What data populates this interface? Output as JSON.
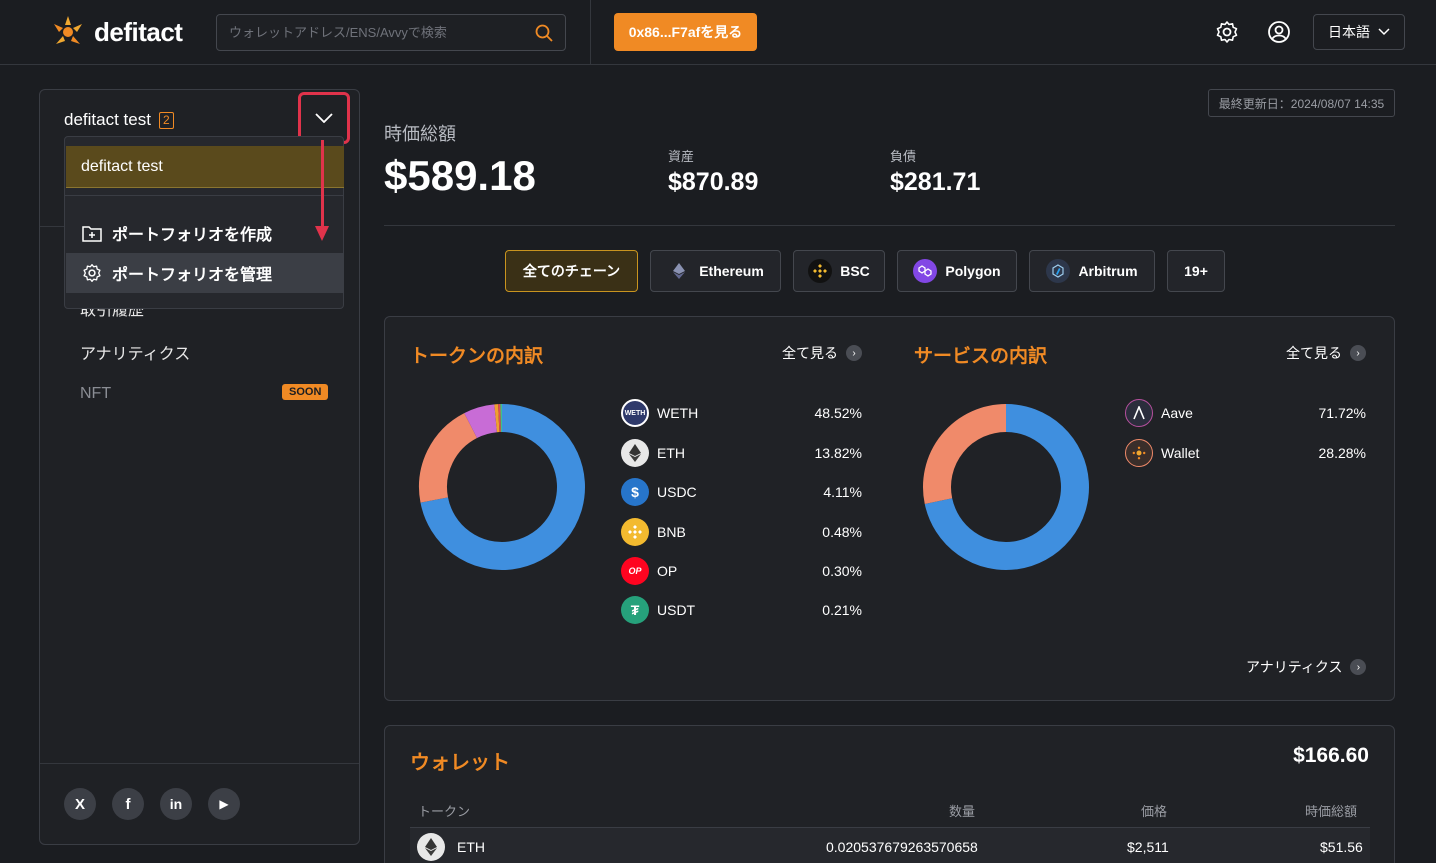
{
  "header": {
    "logo_text": "defitact",
    "search_placeholder": "ウォレットアドレス/ENS/Avvyで検索",
    "address_button": "0x86...F7afを見る",
    "language": "日本語"
  },
  "sidebar": {
    "portfolio_name": "defitact test",
    "portfolio_count": "2",
    "nav": [
      {
        "label": "取引履歴"
      },
      {
        "label": "アナリティクス"
      },
      {
        "label": "NFT",
        "badge": "SOON"
      }
    ],
    "social": [
      "X",
      "f",
      "in",
      "▶"
    ]
  },
  "dropdown": {
    "selected": "defitact test",
    "create": "ポートフォリオを作成",
    "manage": "ポートフォリオを管理"
  },
  "summary": {
    "updated": "最終更新日：2024/08/07 14:35",
    "total_label": "時価総額",
    "total_value": "$589.18",
    "assets_label": "資産",
    "assets_value": "$870.89",
    "liabilities_label": "負債",
    "liabilities_value": "$281.71"
  },
  "chains": [
    {
      "label": "全てのチェーン",
      "active": true
    },
    {
      "label": "Ethereum"
    },
    {
      "label": "BSC"
    },
    {
      "label": "Polygon"
    },
    {
      "label": "Arbitrum"
    },
    {
      "label": "19+"
    }
  ],
  "token_breakdown": {
    "title": "トークンの内訳",
    "see_all": "全て見る",
    "items": [
      {
        "name": "WETH",
        "pct": "48.52%",
        "color": "#2f3a6b"
      },
      {
        "name": "ETH",
        "pct": "13.82%",
        "color": "#3a3d44"
      },
      {
        "name": "USDC",
        "pct": "4.11%",
        "color": "#2775ca"
      },
      {
        "name": "BNB",
        "pct": "0.48%",
        "color": "#f3ba2f"
      },
      {
        "name": "OP",
        "pct": "0.30%",
        "color": "#ff0420"
      },
      {
        "name": "USDT",
        "pct": "0.21%",
        "color": "#26a17b"
      }
    ],
    "donut": [
      {
        "value": 66.7,
        "color": "#3f8fdf"
      },
      {
        "value": 19.0,
        "color": "#f08a6a"
      },
      {
        "value": 5.6,
        "color": "#c86cd6"
      },
      {
        "value": 0.66,
        "color": "#f0a030"
      },
      {
        "value": 0.41,
        "color": "#e05050"
      },
      {
        "value": 0.29,
        "color": "#3fc08a"
      }
    ]
  },
  "service_breakdown": {
    "title": "サービスの内訳",
    "see_all": "全て見る",
    "items": [
      {
        "name": "Aave",
        "pct": "71.72%"
      },
      {
        "name": "Wallet",
        "pct": "28.28%"
      }
    ],
    "donut": [
      {
        "value": 71.72,
        "color": "#3f8fdf"
      },
      {
        "value": 28.28,
        "color": "#f08a6a"
      }
    ],
    "analytics_link": "アナリティクス"
  },
  "wallet": {
    "title": "ウォレット",
    "total": "$166.60",
    "columns": [
      "トークン",
      "数量",
      "価格",
      "時価総額"
    ],
    "rows": [
      {
        "token": "ETH",
        "amount": "0.020537679263570658",
        "price": "$2,511",
        "value": "$51.56"
      }
    ]
  }
}
